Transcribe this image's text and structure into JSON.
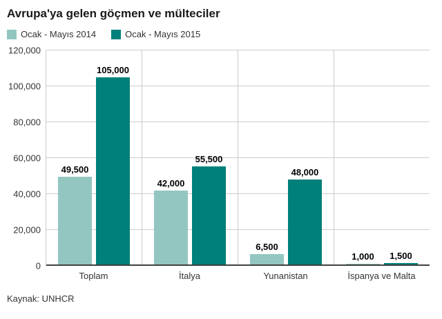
{
  "title": "Avrupa'ya gelen göçmen ve mülteciler",
  "source": "Kaynak: UNHCR",
  "colors": {
    "series_2014": "#94c6c1",
    "series_2015": "#00807a",
    "gridline": "#cccccc",
    "axis_line": "#404040"
  },
  "chart_data": {
    "type": "bar",
    "title": "Avrupa'ya gelen göçmen ve mülteciler",
    "categories": [
      "Toplam",
      "İtalya",
      "Yunanistan",
      "İspanya ve Malta"
    ],
    "series": [
      {
        "name": "Ocak - Mayıs 2014",
        "color": "#94c6c1",
        "values": [
          49500,
          42000,
          6500,
          1000
        ],
        "labels": [
          "49,500",
          "42,000",
          "6,500",
          "1,000"
        ]
      },
      {
        "name": "Ocak - Mayıs 2015",
        "color": "#00807a",
        "values": [
          105000,
          55500,
          48000,
          1500
        ],
        "labels": [
          "105,000",
          "55,500",
          "48,000",
          "1,500"
        ]
      }
    ],
    "xlabel": "",
    "ylabel": "",
    "ylim": [
      0,
      120000
    ],
    "yticks": [
      0,
      20000,
      40000,
      60000,
      80000,
      100000,
      120000
    ],
    "ytick_labels": [
      "0",
      "20,000",
      "40,000",
      "60,000",
      "80,000",
      "100,000",
      "120,000"
    ],
    "grid": true,
    "legend_position": "top"
  }
}
